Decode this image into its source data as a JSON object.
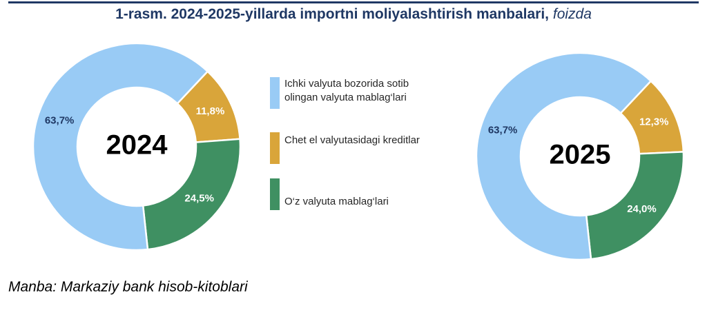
{
  "title": {
    "main": "1-rasm. 2024-2025-yillarda importni moliyalashtirish manbalari,",
    "unit": "foizda"
  },
  "legend": [
    {
      "lines": [
        "Ichki valyuta bozorida sotib",
        "olingan valyuta mablag‘lari"
      ],
      "color": "#99cbf5"
    },
    {
      "lines": [
        "Chet el valyutasidagi kreditlar"
      ],
      "color": "#d9a53a"
    },
    {
      "lines": [
        "O‘z valyuta mablag‘lari"
      ],
      "color": "#3f9062"
    }
  ],
  "chart_data": [
    {
      "type": "pie",
      "center_label": "2024",
      "categories": [
        "Ichki valyuta bozorida sotib olingan valyuta mablag‘lari",
        "Chet el valyutasidagi kreditlar",
        "O‘z valyuta mablag‘lari"
      ],
      "values": [
        63.7,
        11.8,
        24.5
      ],
      "data_labels": [
        "63,7%",
        "11,8%",
        "24,5%"
      ],
      "colors": [
        "#99cbf5",
        "#d9a53a",
        "#3f9062"
      ],
      "label_colors": [
        "#1f3864",
        "#ffffff",
        "#ffffff"
      ]
    },
    {
      "type": "pie",
      "center_label": "2025",
      "categories": [
        "Ichki valyuta bozorida sotib olingan valyuta mablag‘lari",
        "Chet el valyutasidagi kreditlar",
        "O‘z valyuta mablag‘lari"
      ],
      "values": [
        63.7,
        12.3,
        24.0
      ],
      "data_labels": [
        "63,7%",
        "12,3%",
        "24,0%"
      ],
      "colors": [
        "#99cbf5",
        "#d9a53a",
        "#3f9062"
      ],
      "label_colors": [
        "#1f3864",
        "#ffffff",
        "#ffffff"
      ]
    }
  ],
  "source": "Manba: Markaziy bank hisob-kitoblari"
}
